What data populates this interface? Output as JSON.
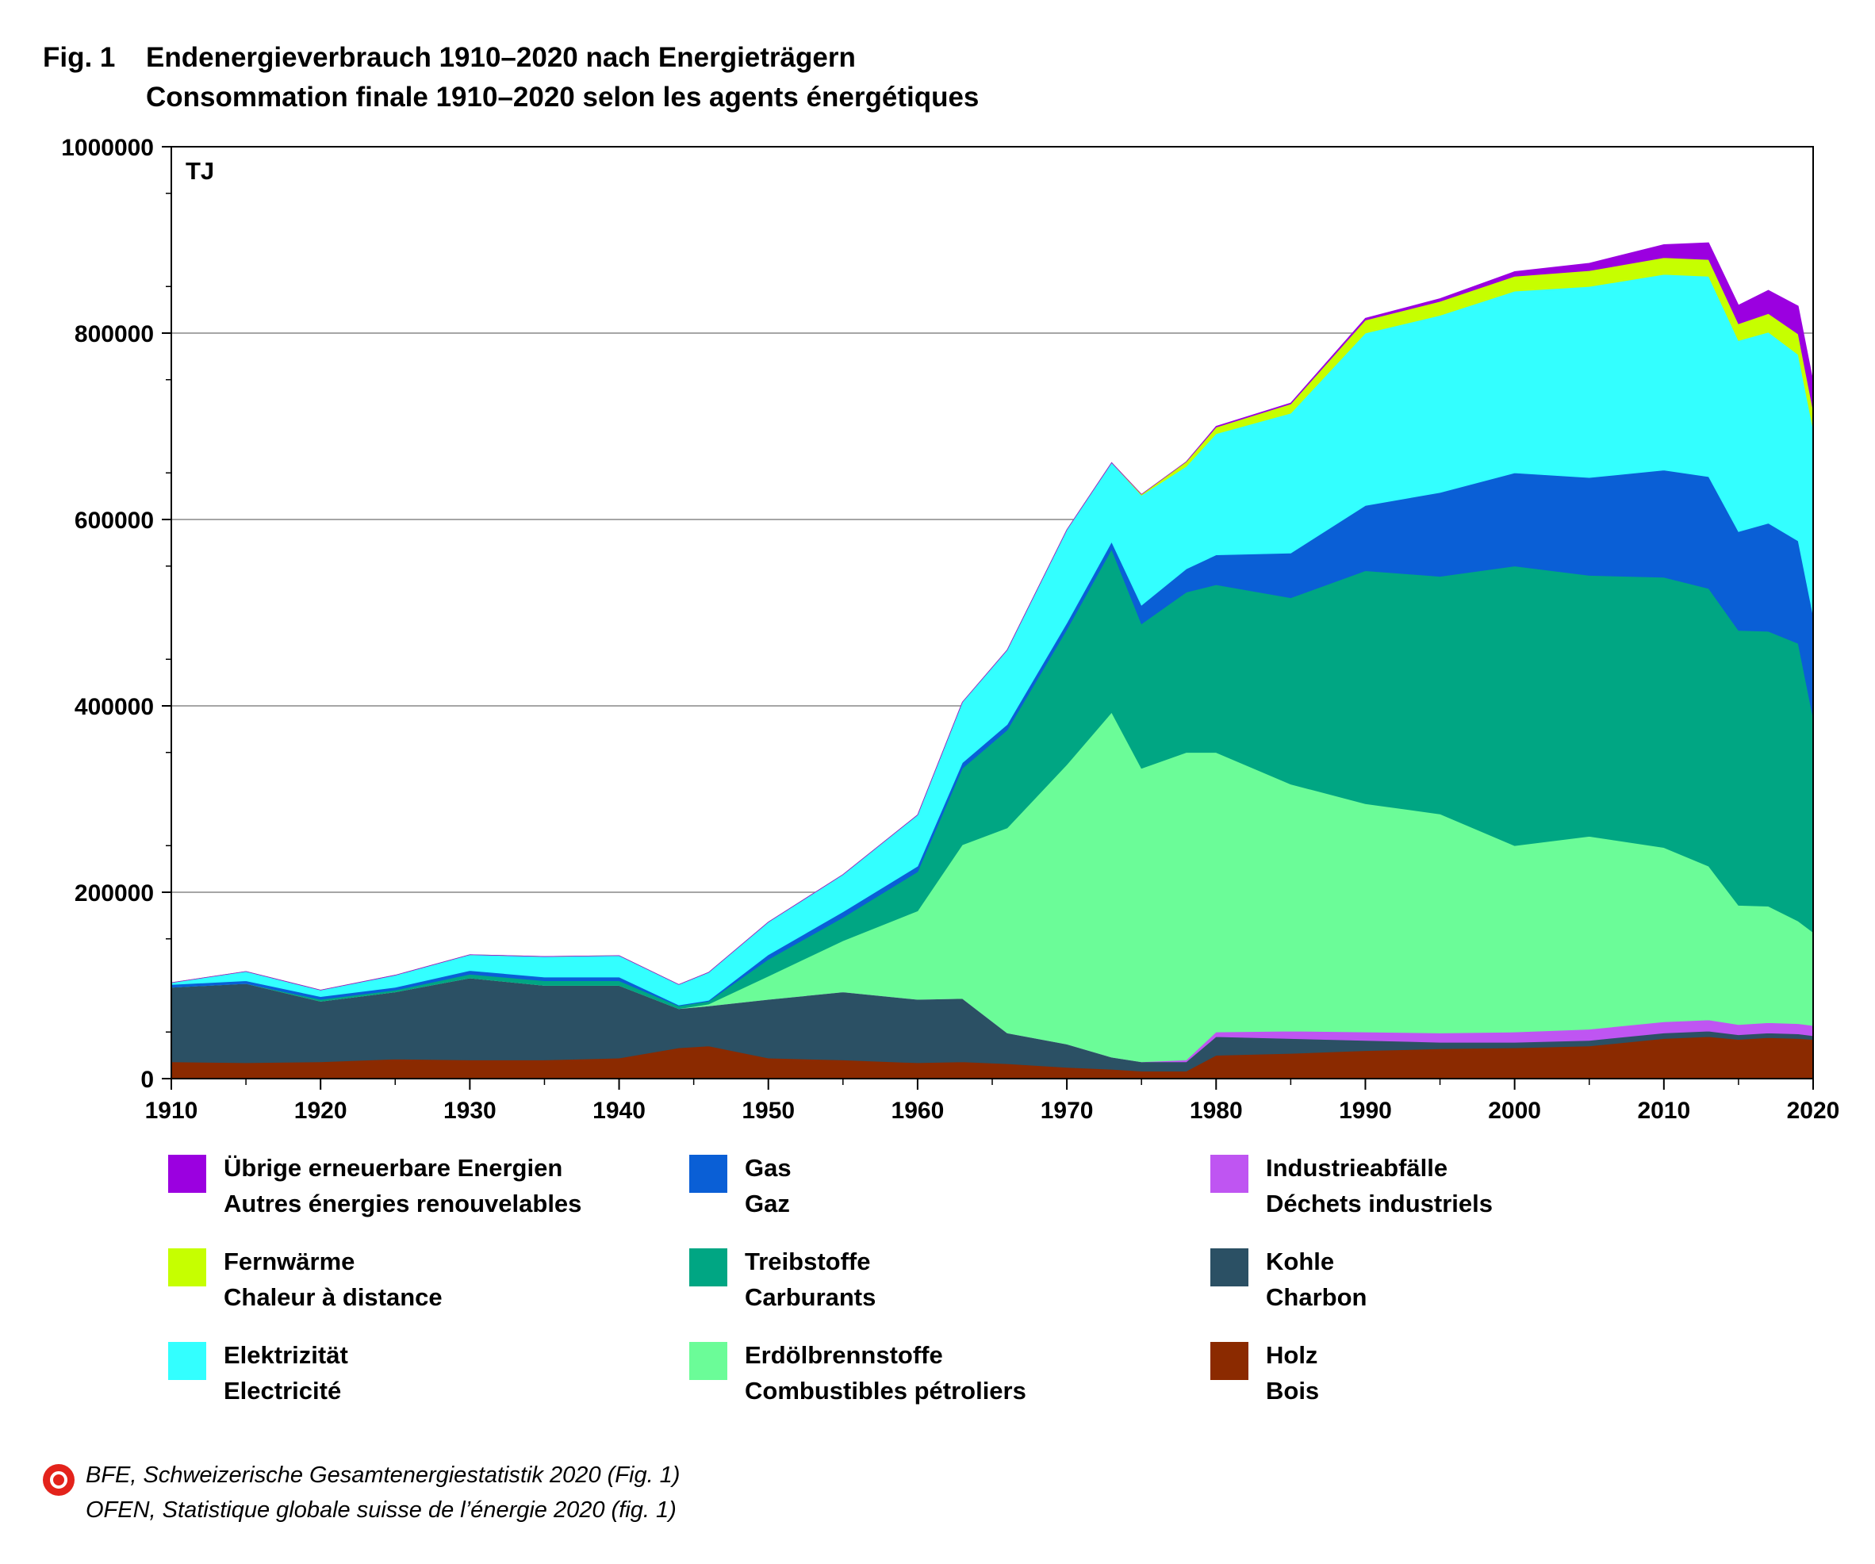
{
  "figure": {
    "number": "Fig. 1",
    "title_de": "Endenergieverbrauch 1910–2020 nach Energieträgern",
    "title_fr": "Consommation finale 1910–2020 selon les agents énergétiques"
  },
  "source": {
    "line1": "BFE, Schweizerische Gesamtenergiestatistik 2020 (Fig. 1)",
    "line2": "OFEN, Statistique globale suisse de l’énergie 2020 (fig. 1)"
  },
  "chart_data": {
    "type": "area",
    "stacked": true,
    "unit_label": "TJ",
    "ylim": [
      0,
      1000000
    ],
    "xlim": [
      1910,
      2020
    ],
    "y_ticks": [
      0,
      200000,
      400000,
      600000,
      800000,
      1000000
    ],
    "y_tick_labels": [
      "0",
      "200000",
      "400000",
      "600000",
      "800000",
      "1000000"
    ],
    "x_ticks": [
      1910,
      1920,
      1930,
      1940,
      1950,
      1960,
      1970,
      1980,
      1990,
      2000,
      2010,
      2020
    ],
    "x_tick_labels": [
      "1910",
      "1920",
      "1930",
      "1940",
      "1950",
      "1960",
      "1970",
      "1980",
      "1990",
      "2000",
      "2010",
      "2020"
    ],
    "grid": "horizontal",
    "legend_position": "bottom",
    "years": [
      1910,
      1915,
      1920,
      1925,
      1930,
      1935,
      1940,
      1944,
      1946,
      1950,
      1955,
      1960,
      1963,
      1966,
      1970,
      1973,
      1975,
      1978,
      1980,
      1985,
      1990,
      1995,
      2000,
      2005,
      2010,
      2013,
      2015,
      2017,
      2019,
      2020
    ],
    "series": [
      {
        "name_de": "Holz",
        "name_fr": "Bois",
        "color": "#8b2a00",
        "values": [
          18000,
          17000,
          18000,
          21000,
          20000,
          20000,
          22000,
          33000,
          35000,
          22000,
          20000,
          17000,
          18000,
          16000,
          12000,
          10000,
          8000,
          8000,
          25000,
          27000,
          30000,
          32000,
          33000,
          35000,
          43000,
          45000,
          42000,
          44000,
          43000,
          42000
        ]
      },
      {
        "name_de": "Kohle",
        "name_fr": "Charbon",
        "color": "#2b5064",
        "values": [
          80000,
          85000,
          65000,
          72000,
          88000,
          80000,
          78000,
          42000,
          43000,
          63000,
          73000,
          68000,
          68000,
          33000,
          25000,
          13000,
          10000,
          10000,
          20000,
          16000,
          11000,
          7000,
          6000,
          6000,
          6000,
          6000,
          5000,
          5000,
          5000,
          4000
        ]
      },
      {
        "name_de": "Industrieabfälle",
        "name_fr": "Déchets industriels",
        "color": "#bf55f2",
        "values": [
          0,
          0,
          0,
          0,
          0,
          0,
          0,
          0,
          0,
          0,
          0,
          0,
          0,
          0,
          0,
          0,
          0,
          2000,
          5000,
          8000,
          9000,
          10000,
          11000,
          12000,
          12000,
          12000,
          11000,
          11000,
          11000,
          11000
        ]
      },
      {
        "name_de": "Erdölbrennstoffe",
        "name_fr": "Combustibles pétroliers",
        "color": "#6bfc98",
        "values": [
          0,
          0,
          0,
          0,
          0,
          0,
          0,
          0,
          2000,
          25000,
          55000,
          95000,
          165000,
          220000,
          300000,
          370000,
          315000,
          330000,
          300000,
          265000,
          245000,
          235000,
          200000,
          207000,
          187000,
          165000,
          128000,
          125000,
          110000,
          100000
        ]
      },
      {
        "name_de": "Treibstoffe",
        "name_fr": "Carburants",
        "color": "#00a683",
        "values": [
          0,
          0,
          2000,
          2000,
          4000,
          5000,
          5000,
          3000,
          3000,
          18000,
          25000,
          42000,
          82000,
          105000,
          145000,
          175000,
          155000,
          172000,
          180000,
          200000,
          250000,
          255000,
          300000,
          280000,
          290000,
          298000,
          295000,
          295000,
          298000,
          230000
        ]
      },
      {
        "name_de": "Gas",
        "name_fr": "Gaz",
        "color": "#0a5fd6",
        "values": [
          3000,
          3000,
          3000,
          3000,
          4000,
          4000,
          4000,
          1000,
          1000,
          5000,
          6000,
          6000,
          6000,
          6000,
          7000,
          8000,
          20000,
          25000,
          32000,
          48000,
          70000,
          90000,
          100000,
          105000,
          115000,
          120000,
          106000,
          116000,
          110000,
          110000
        ]
      },
      {
        "name_de": "Elektrizität",
        "name_fr": "Electricité",
        "color": "#33ffff",
        "values": [
          2000,
          10000,
          7000,
          13000,
          17000,
          22000,
          23000,
          22000,
          30000,
          35000,
          40000,
          55000,
          65000,
          80000,
          100000,
          85000,
          118000,
          110000,
          130000,
          150000,
          185000,
          190000,
          195000,
          205000,
          210000,
          215000,
          205000,
          205000,
          200000,
          200000
        ]
      },
      {
        "name_de": "Fernwärme",
        "name_fr": "Chaleur à distance",
        "color": "#c6ff00",
        "values": [
          0,
          0,
          0,
          0,
          0,
          0,
          0,
          0,
          0,
          0,
          0,
          0,
          0,
          0,
          0,
          0,
          1000,
          5000,
          7000,
          10000,
          14000,
          15000,
          16000,
          17000,
          18000,
          18000,
          18000,
          20000,
          22000,
          20000
        ]
      },
      {
        "name_de": "Übrige erneuerbare Energien",
        "name_fr": "Autres énergies renouvelables",
        "color": "#9b00e0",
        "values": [
          0,
          0,
          0,
          0,
          0,
          0,
          0,
          0,
          0,
          0,
          0,
          0,
          0,
          0,
          0,
          0,
          0,
          0,
          1000,
          1000,
          2000,
          3000,
          5000,
          8000,
          14000,
          18000,
          20000,
          25000,
          30000,
          31000
        ]
      }
    ]
  }
}
